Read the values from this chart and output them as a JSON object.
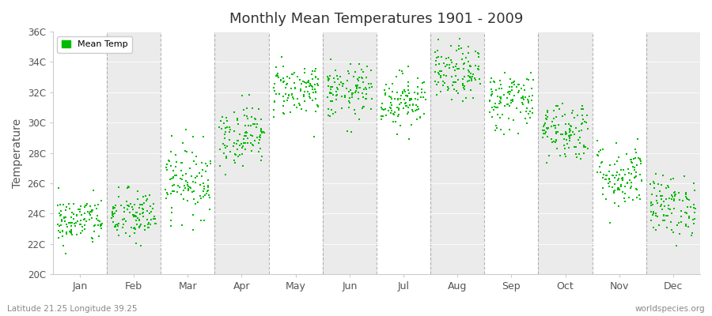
{
  "title": "Monthly Mean Temperatures 1901 - 2009",
  "ylabel": "Temperature",
  "ytick_labels": [
    "20C",
    "22C",
    "24C",
    "26C",
    "28C",
    "30C",
    "32C",
    "34C",
    "36C"
  ],
  "ytick_values": [
    20,
    22,
    24,
    26,
    28,
    30,
    32,
    34,
    36
  ],
  "ylim": [
    20,
    36
  ],
  "months": [
    "Jan",
    "Feb",
    "Mar",
    "Apr",
    "May",
    "Jun",
    "Jul",
    "Aug",
    "Sep",
    "Oct",
    "Nov",
    "Dec"
  ],
  "dot_color": "#00bb00",
  "background_color": "#ffffff",
  "band_color_light": "#ffffff",
  "band_color_dark": "#ebebeb",
  "dashed_color": "#888888",
  "footer_left": "Latitude 21.25 Longitude 39.25",
  "footer_right": "worldspecies.org",
  "n_years": 109,
  "seed": 42,
  "monthly_means": [
    23.5,
    23.8,
    26.2,
    29.2,
    32.2,
    32.0,
    31.5,
    33.2,
    31.5,
    29.5,
    26.5,
    24.5
  ],
  "monthly_stds": [
    0.8,
    0.9,
    1.2,
    1.0,
    0.9,
    0.9,
    0.9,
    0.9,
    1.0,
    1.0,
    1.1,
    1.0
  ]
}
